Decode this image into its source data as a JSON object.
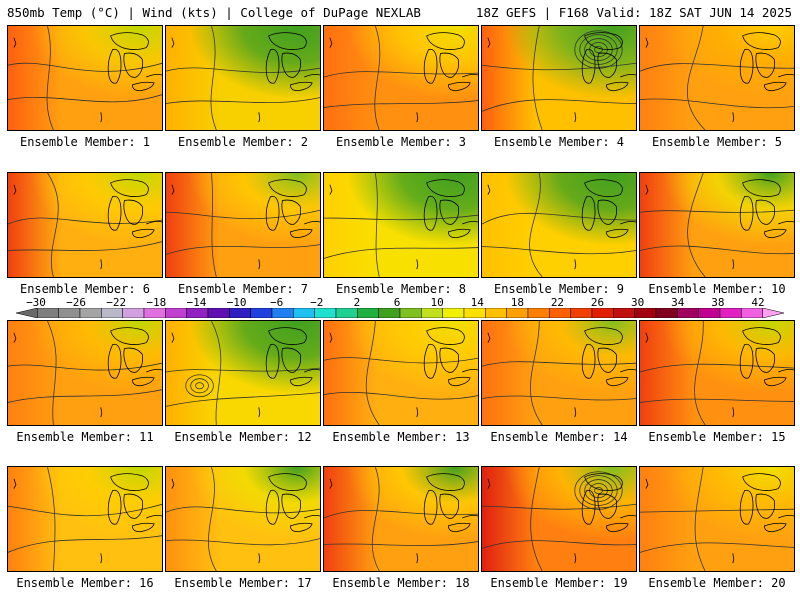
{
  "header": {
    "left": "850mb Temp (°C) | Wind (kts) | College of DuPage NEXLAB",
    "right": "18Z GEFS | F168 Valid: 18Z SAT JUN 14 2025"
  },
  "colorbar": {
    "tick_labels": [
      "−30",
      "−26",
      "−22",
      "−18",
      "−14",
      "−10",
      "−6",
      "−2",
      "2",
      "6",
      "10",
      "14",
      "18",
      "22",
      "26",
      "30",
      "34",
      "38",
      "42"
    ],
    "colors": [
      "#6a6a6a",
      "#7e7e7e",
      "#909090",
      "#a4a4a4",
      "#b8b8c8",
      "#d0a0e0",
      "#e070e0",
      "#c040d0",
      "#9020c0",
      "#6010b0",
      "#3020c0",
      "#2040e0",
      "#2080f0",
      "#20c0f0",
      "#20e0d0",
      "#20d090",
      "#20b040",
      "#40a020",
      "#80c020",
      "#c0e020",
      "#f0f000",
      "#ffe000",
      "#ffc000",
      "#ffa000",
      "#ff8000",
      "#ff6000",
      "#f04000",
      "#e02000",
      "#c01010",
      "#a00010",
      "#800020",
      "#a00060",
      "#c00090",
      "#e020c0",
      "#f060e0",
      "#ffa0f0"
    ]
  },
  "panels": [
    {
      "label": "Ensemble Member: 1",
      "base": "#ffa010",
      "north": "#f8d000",
      "ne": "#c0d800",
      "west": "#ff6010",
      "lows": []
    },
    {
      "label": "Ensemble Member: 2",
      "base": "#f8d000",
      "north": "#40a020",
      "ne": "#40a020",
      "west": "#ffb000",
      "lows": []
    },
    {
      "label": "Ensemble Member: 3",
      "base": "#ff9010",
      "north": "#ffd000",
      "ne": "#f0e000",
      "west": "#ff7010",
      "lows": []
    },
    {
      "label": "Ensemble Member: 4",
      "base": "#ffc000",
      "north": "#60b020",
      "ne": "#40a020",
      "west": "#ff6010",
      "lows": [
        "ne"
      ]
    },
    {
      "label": "Ensemble Member: 5",
      "base": "#ffa010",
      "north": "#ffb000",
      "ne": "#ffd000",
      "west": "#ff8010",
      "lows": []
    },
    {
      "label": "Ensemble Member: 6",
      "base": "#ffb010",
      "north": "#ffd000",
      "ne": "#c0d800",
      "west": "#f04010",
      "lows": []
    },
    {
      "label": "Ensemble Member: 7",
      "base": "#ffa010",
      "north": "#ffd000",
      "ne": "#80c020",
      "west": "#f04010",
      "lows": []
    },
    {
      "label": "Ensemble Member: 8",
      "base": "#f8e000",
      "north": "#40a020",
      "ne": "#40a020",
      "west": "#ffd000",
      "lows": []
    },
    {
      "label": "Ensemble Member: 9",
      "base": "#ffd000",
      "north": "#40a020",
      "ne": "#40a020",
      "west": "#ffc000",
      "lows": []
    },
    {
      "label": "Ensemble Member: 10",
      "base": "#ffa010",
      "north": "#f0e000",
      "ne": "#40a020",
      "west": "#f04010",
      "lows": []
    },
    {
      "label": "Ensemble Member: 11",
      "base": "#ffa010",
      "north": "#ffc000",
      "ne": "#c0d800",
      "west": "#ff8010",
      "lows": []
    },
    {
      "label": "Ensemble Member: 12",
      "base": "#f8d800",
      "north": "#40a020",
      "ne": "#40a020",
      "west": "#ffb000",
      "lows": [
        "sw"
      ]
    },
    {
      "label": "Ensemble Member: 13",
      "base": "#ffb010",
      "north": "#ffd000",
      "ne": "#f0e000",
      "west": "#ff7010",
      "lows": []
    },
    {
      "label": "Ensemble Member: 14",
      "base": "#ffa010",
      "north": "#ffc000",
      "ne": "#80c020",
      "west": "#ff7010",
      "lows": []
    },
    {
      "label": "Ensemble Member: 15",
      "base": "#ff9010",
      "north": "#ffc000",
      "ne": "#c0d800",
      "west": "#f04010",
      "lows": []
    },
    {
      "label": "Ensemble Member: 16",
      "base": "#ffc010",
      "north": "#ffd000",
      "ne": "#c0d800",
      "west": "#ff8010",
      "lows": []
    },
    {
      "label": "Ensemble Member: 17",
      "base": "#ffc010",
      "north": "#f0e000",
      "ne": "#40a020",
      "west": "#ff9010",
      "lows": []
    },
    {
      "label": "Ensemble Member: 18",
      "base": "#ffa010",
      "north": "#ffd000",
      "ne": "#40a020",
      "west": "#f04010",
      "lows": []
    },
    {
      "label": "Ensemble Member: 19",
      "base": "#ff8010",
      "north": "#ffc000",
      "ne": "#80c020",
      "west": "#e02010",
      "lows": [
        "ne"
      ]
    },
    {
      "label": "Ensemble Member: 20",
      "base": "#ffa010",
      "north": "#ffc000",
      "ne": "#f0e000",
      "west": "#ff8010",
      "lows": []
    }
  ]
}
